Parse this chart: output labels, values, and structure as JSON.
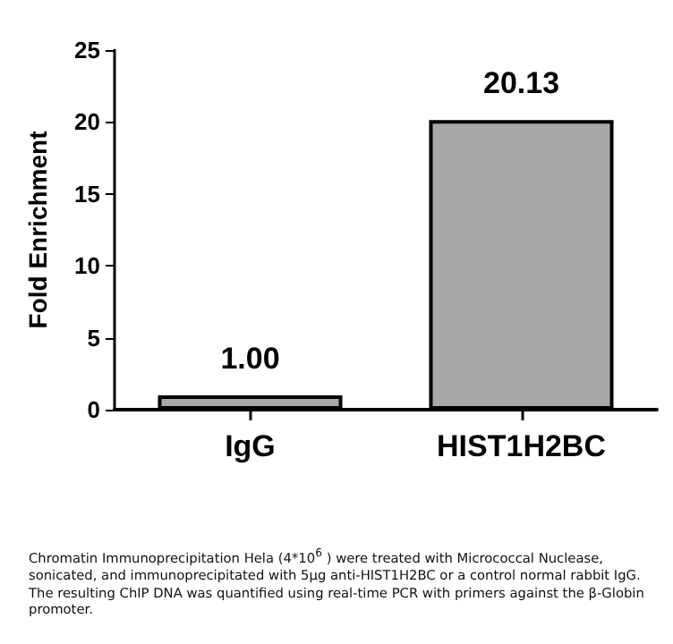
{
  "chart_data": {
    "type": "bar",
    "ylabel": "Fold Enrichment",
    "categories": [
      "IgG",
      "HIST1H2BC"
    ],
    "values": [
      1,
      20.13
    ],
    "value_labels": [
      "1.00",
      "20.13"
    ],
    "color": "#a8a8a8",
    "ylim": [
      0,
      25
    ],
    "yticks": [
      0,
      5,
      10,
      15,
      20,
      25
    ],
    "grid": false,
    "annotations": [
      "Chromatin Immunoprecipitation Hela (4*10$^{6}$ ) were treated with Micrococcal Nuclease, sonicated, and immunoprecipitated with 5μg anti-HIST1H2BC or a control normal rabbit IgG. The resulting ChIP DNA was quantified using real-time PCR with primers against the β-Globin promoter."
    ]
  }
}
